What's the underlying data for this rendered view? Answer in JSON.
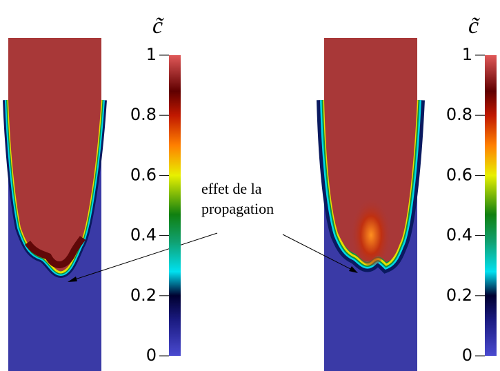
{
  "panels": [
    {
      "colorbar": {
        "label": "c̃",
        "range": [
          0,
          1
        ],
        "ticks": [
          0,
          0.2,
          0.4,
          0.6,
          0.8,
          1
        ]
      }
    },
    {
      "colorbar": {
        "label": "c̃",
        "range": [
          0,
          1
        ],
        "ticks": [
          0,
          0.2,
          0.4,
          0.6,
          0.8,
          1
        ]
      }
    }
  ],
  "annotation": {
    "lines": [
      "effet de la",
      "propagation"
    ]
  }
}
